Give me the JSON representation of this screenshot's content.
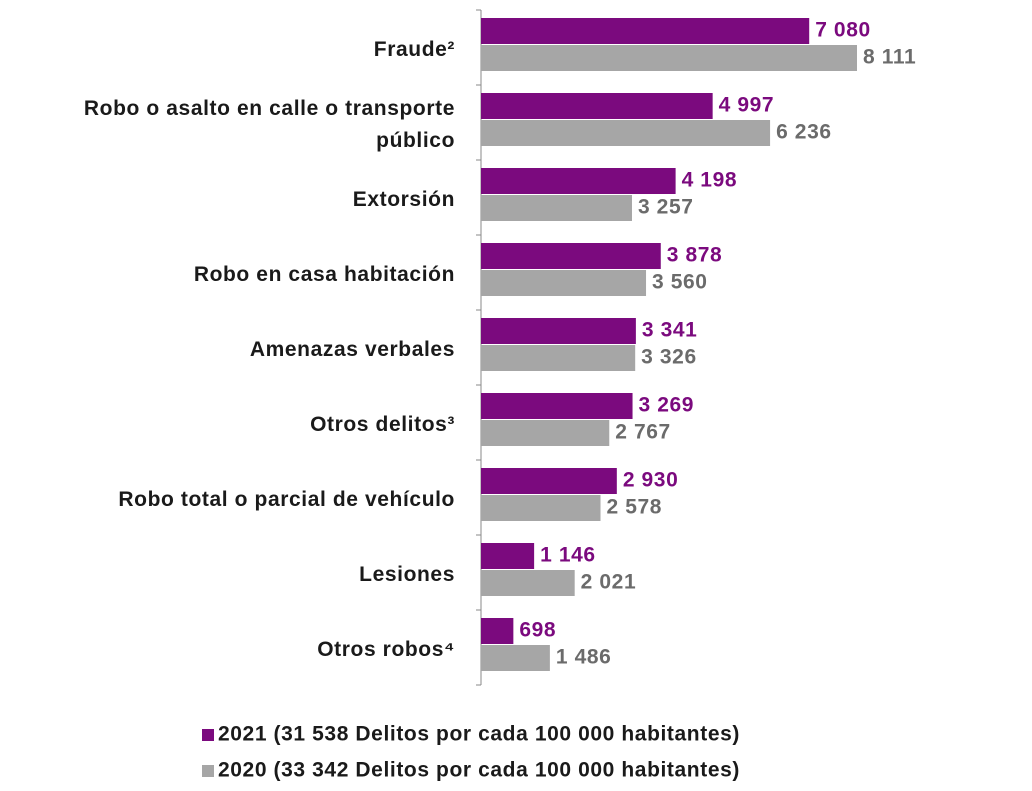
{
  "chart_data": {
    "type": "bar",
    "orientation": "horizontal",
    "categories": [
      "Fraude²",
      "Robo o asalto en calle o transporte público",
      "Extorsión",
      "Robo en casa habitación",
      "Amenazas verbales",
      "Otros delitos³",
      "Robo total o parcial de vehículo",
      "Lesiones",
      "Otros robos⁴"
    ],
    "series": [
      {
        "name": "2021 (31 538 Delitos por cada 100 000 habitantes)",
        "color": "#7b0a7e",
        "label_color": "#7b0a7e",
        "values": [
          7080,
          4997,
          4198,
          3878,
          3341,
          3269,
          2930,
          1146,
          698
        ],
        "value_labels": [
          "7 080",
          "4 997",
          "4 198",
          "3 878",
          "3 341",
          "3 269",
          "2 930",
          "1 146",
          "698"
        ]
      },
      {
        "name": "2020 (33 342 Delitos por cada 100 000 habitantes)",
        "color": "#a6a6a6",
        "label_color": "#6b6b6b",
        "values": [
          8111,
          6236,
          3257,
          3560,
          3326,
          2767,
          2578,
          2021,
          1486
        ],
        "value_labels": [
          "8 111",
          "6 236",
          "3 257",
          "3 560",
          "3 326",
          "2 767",
          "2 578",
          "2 021",
          "1 486"
        ]
      }
    ],
    "legend": "bottom"
  }
}
